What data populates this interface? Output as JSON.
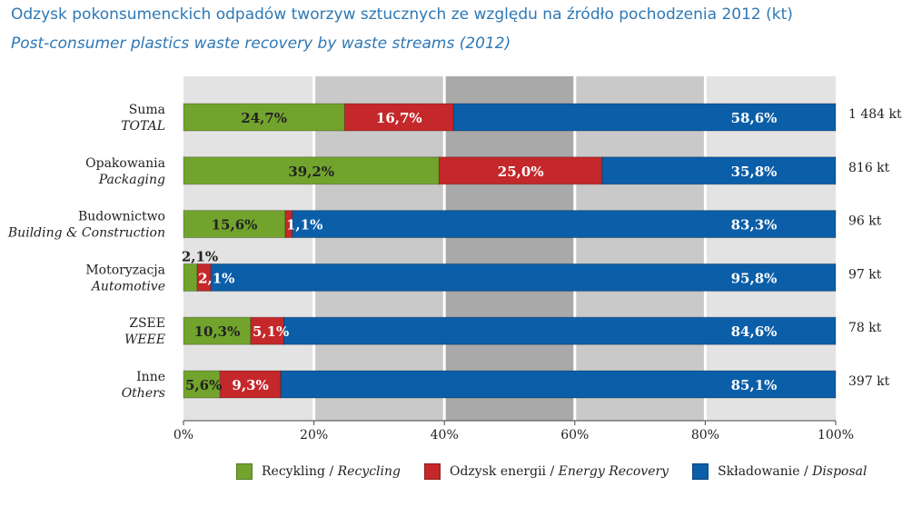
{
  "title": "Odzysk pokonsumenckich odpadów tworzyw sztucznych ze względu na źródło pochodzenia 2012 (kt)",
  "subtitle": "Post-consumer plastics waste recovery by waste streams (2012)",
  "colors": {
    "recycling": "#72a42d",
    "energy_recovery": "#c4282a",
    "disposal": "#0b5ea8",
    "band_light": "#e3e3e3",
    "band_mid": "#c9c9c9",
    "band_dark": "#a9a9a9",
    "text": "#222222",
    "title": "#2e78b5"
  },
  "chart_data": {
    "type": "bar",
    "orientation": "horizontal",
    "stacked": "percent",
    "title": "Odzysk pokonsumenckich odpadów tworzyw sztucznych ze względu na źródło pochodzenia 2012 (kt)",
    "subtitle": "Post-consumer plastics waste recovery by waste streams (2012)",
    "categories": [
      {
        "pl": "Suma",
        "en": "TOTAL"
      },
      {
        "pl": "Opakowania",
        "en": "Packaging"
      },
      {
        "pl": "Budownictwo",
        "en": "Building & Construction"
      },
      {
        "pl": "Motoryzacja",
        "en": "Automotive"
      },
      {
        "pl": "ZSEE",
        "en": "WEEE"
      },
      {
        "pl": "Inne",
        "en": "Others"
      }
    ],
    "totals": [
      "1 484 kt",
      "816 kt",
      "96 kt",
      "97 kt",
      "78 kt",
      "397 kt"
    ],
    "series": [
      {
        "name_pl": "Recykling",
        "name_en": "Recycling",
        "key": "recycling",
        "values": [
          24.7,
          39.2,
          15.6,
          2.1,
          10.3,
          5.6
        ],
        "labels": [
          "24,7%",
          "39,2%",
          "15,6%",
          "2,1%",
          "10,3%",
          "5,6%"
        ]
      },
      {
        "name_pl": "Odzysk energii",
        "name_en": "Energy Recovery",
        "key": "energy_recovery",
        "values": [
          16.7,
          25.0,
          1.1,
          2.1,
          5.1,
          9.3
        ],
        "labels": [
          "16,7%",
          "25,0%",
          "1,1%",
          "2,1%",
          "5,1%",
          "9,3%"
        ]
      },
      {
        "name_pl": "Składowanie",
        "name_en": "Disposal",
        "key": "disposal",
        "values": [
          58.6,
          35.8,
          83.3,
          95.8,
          84.6,
          85.1
        ],
        "labels": [
          "58,6%",
          "35,8%",
          "83,3%",
          "95,8%",
          "84,6%",
          "85,1%"
        ]
      }
    ],
    "xticks": [
      "0%",
      "20%",
      "40%",
      "60%",
      "80%",
      "100%"
    ],
    "xlim": [
      0,
      100
    ],
    "legend_position": "bottom"
  }
}
